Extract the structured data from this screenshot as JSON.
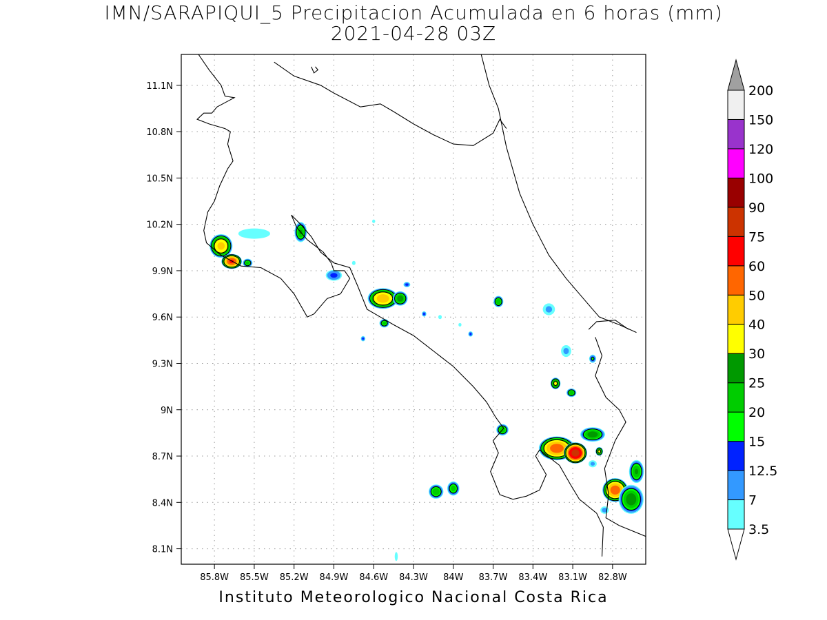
{
  "title": {
    "line1": "IMN/SARAPIQUI_5 Precipitacion Acumulada en 6 horas (mm)",
    "line2": "2021-04-28 03Z"
  },
  "footer": "Instituto Meteorologico Nacional Costa Rica",
  "map": {
    "lon_range": [
      -86.05,
      -82.55
    ],
    "lat_range": [
      8.0,
      11.3
    ],
    "x_ticks": [
      {
        "lon": -85.8,
        "label": "85.8W"
      },
      {
        "lon": -85.5,
        "label": "85.5W"
      },
      {
        "lon": -85.2,
        "label": "85.2W"
      },
      {
        "lon": -84.9,
        "label": "84.9W"
      },
      {
        "lon": -84.6,
        "label": "84.6W"
      },
      {
        "lon": -84.3,
        "label": "84.3W"
      },
      {
        "lon": -84.0,
        "label": "84W"
      },
      {
        "lon": -83.7,
        "label": "83.7W"
      },
      {
        "lon": -83.4,
        "label": "83.4W"
      },
      {
        "lon": -83.1,
        "label": "83.1W"
      },
      {
        "lon": -82.8,
        "label": "82.8W"
      }
    ],
    "y_ticks": [
      {
        "lat": 11.1,
        "label": "11.1N"
      },
      {
        "lat": 10.8,
        "label": "10.8N"
      },
      {
        "lat": 10.5,
        "label": "10.5N"
      },
      {
        "lat": 10.2,
        "label": "10.2N"
      },
      {
        "lat": 9.9,
        "label": "9.9N"
      },
      {
        "lat": 9.6,
        "label": "9.6N"
      },
      {
        "lat": 9.3,
        "label": "9.3N"
      },
      {
        "lat": 9.0,
        "label": "9N"
      },
      {
        "lat": 8.7,
        "label": "8.7N"
      },
      {
        "lat": 8.4,
        "label": "8.4N"
      },
      {
        "lat": 8.1,
        "label": "8.1N"
      }
    ],
    "grid": true,
    "coastlines": [
      [
        [
          -85.92,
          11.3
        ],
        [
          -85.84,
          11.2
        ],
        [
          -85.75,
          11.1
        ],
        [
          -85.72,
          11.03
        ],
        [
          -85.65,
          11.02
        ],
        [
          -85.78,
          10.96
        ],
        [
          -85.82,
          10.92
        ],
        [
          -85.88,
          10.92
        ],
        [
          -85.93,
          10.88
        ],
        [
          -85.84,
          10.85
        ],
        [
          -85.72,
          10.82
        ],
        [
          -85.68,
          10.8
        ],
        [
          -85.7,
          10.72
        ],
        [
          -85.66,
          10.61
        ],
        [
          -85.7,
          10.56
        ],
        [
          -85.76,
          10.45
        ],
        [
          -85.8,
          10.35
        ],
        [
          -85.85,
          10.28
        ],
        [
          -85.88,
          10.16
        ],
        [
          -85.86,
          10.08
        ],
        [
          -85.75,
          10.0
        ],
        [
          -85.6,
          9.93
        ],
        [
          -85.45,
          9.92
        ],
        [
          -85.3,
          9.85
        ],
        [
          -85.2,
          9.75
        ],
        [
          -85.1,
          9.6
        ],
        [
          -85.05,
          9.62
        ],
        [
          -84.95,
          9.72
        ],
        [
          -84.85,
          9.75
        ],
        [
          -84.78,
          9.85
        ],
        [
          -84.82,
          9.9
        ],
        [
          -84.9,
          9.9
        ],
        [
          -84.92,
          9.95
        ],
        [
          -84.98,
          10.02
        ],
        [
          -85.1,
          10.1
        ],
        [
          -85.18,
          10.18
        ],
        [
          -85.22,
          10.26
        ],
        [
          -85.15,
          10.2
        ],
        [
          -85.07,
          10.12
        ],
        [
          -85.0,
          10.02
        ],
        [
          -84.9,
          9.95
        ],
        [
          -84.78,
          9.92
        ],
        [
          -84.72,
          9.8
        ],
        [
          -84.65,
          9.65
        ],
        [
          -84.55,
          9.6
        ],
        [
          -84.45,
          9.55
        ],
        [
          -84.3,
          9.48
        ],
        [
          -84.15,
          9.38
        ],
        [
          -84.0,
          9.28
        ],
        [
          -83.85,
          9.15
        ],
        [
          -83.75,
          9.05
        ],
        [
          -83.68,
          8.95
        ],
        [
          -83.62,
          8.88
        ],
        [
          -83.7,
          8.8
        ],
        [
          -83.66,
          8.72
        ],
        [
          -83.72,
          8.6
        ],
        [
          -83.65,
          8.45
        ],
        [
          -83.55,
          8.42
        ],
        [
          -83.45,
          8.44
        ],
        [
          -83.35,
          8.48
        ],
        [
          -83.3,
          8.58
        ],
        [
          -83.38,
          8.7
        ],
        [
          -83.35,
          8.74
        ],
        [
          -83.2,
          8.64
        ],
        [
          -83.12,
          8.52
        ],
        [
          -83.05,
          8.42
        ],
        [
          -82.92,
          8.33
        ],
        [
          -82.87,
          8.24
        ],
        [
          -82.88,
          8.05
        ]
      ],
      [
        [
          -85.35,
          11.25
        ],
        [
          -85.2,
          11.16
        ],
        [
          -85.0,
          11.1
        ],
        [
          -84.9,
          11.05
        ],
        [
          -84.7,
          10.96
        ],
        [
          -84.55,
          10.98
        ],
        [
          -84.45,
          10.93
        ],
        [
          -84.3,
          10.85
        ],
        [
          -84.15,
          10.78
        ],
        [
          -84.0,
          10.72
        ],
        [
          -83.85,
          10.71
        ],
        [
          -83.7,
          10.79
        ],
        [
          -83.65,
          10.88
        ],
        [
          -83.6,
          10.82
        ]
      ],
      [
        [
          -83.79,
          11.3
        ],
        [
          -83.73,
          11.1
        ],
        [
          -83.66,
          10.95
        ],
        [
          -83.6,
          10.7
        ],
        [
          -83.5,
          10.4
        ],
        [
          -83.4,
          10.2
        ],
        [
          -83.28,
          10.0
        ],
        [
          -83.15,
          9.85
        ],
        [
          -83.0,
          9.7
        ],
        [
          -82.9,
          9.6
        ],
        [
          -82.75,
          9.55
        ],
        [
          -82.62,
          9.5
        ]
      ],
      [
        [
          -82.93,
          9.47
        ],
        [
          -82.88,
          9.35
        ],
        [
          -82.93,
          9.22
        ],
        [
          -82.85,
          9.08
        ],
        [
          -82.75,
          9.0
        ],
        [
          -82.7,
          8.92
        ],
        [
          -82.78,
          8.8
        ],
        [
          -82.86,
          8.62
        ],
        [
          -82.83,
          8.45
        ],
        [
          -82.85,
          8.3
        ],
        [
          -82.75,
          8.25
        ],
        [
          -82.55,
          8.18
        ]
      ],
      [
        [
          -82.98,
          9.52
        ],
        [
          -82.92,
          9.57
        ],
        [
          -82.78,
          9.58
        ],
        [
          -82.68,
          9.52
        ]
      ],
      [
        [
          -85.07,
          11.22
        ],
        [
          -85.05,
          11.18
        ],
        [
          -85.02,
          11.2
        ],
        [
          -85.04,
          11.22
        ]
      ]
    ]
  },
  "precip_cells": [
    {
      "lon": -85.75,
      "lat": 10.06,
      "peak": 42,
      "rx": 0.09,
      "ry": 0.08
    },
    {
      "lon": -85.67,
      "lat": 9.96,
      "peak": 60,
      "rx": 0.08,
      "ry": 0.05
    },
    {
      "lon": -85.55,
      "lat": 9.95,
      "peak": 22,
      "rx": 0.04,
      "ry": 0.03
    },
    {
      "lon": -85.5,
      "lat": 10.14,
      "peak": 6,
      "rx": 0.18,
      "ry": 0.05
    },
    {
      "lon": -85.15,
      "lat": 10.15,
      "peak": 25,
      "rx": 0.05,
      "ry": 0.07
    },
    {
      "lon": -84.9,
      "lat": 9.87,
      "peak": 14,
      "rx": 0.07,
      "ry": 0.04
    },
    {
      "lon": -84.53,
      "lat": 9.72,
      "peak": 45,
      "rx": 0.12,
      "ry": 0.07
    },
    {
      "lon": -84.4,
      "lat": 9.72,
      "peak": 28,
      "rx": 0.06,
      "ry": 0.05
    },
    {
      "lon": -84.52,
      "lat": 9.56,
      "peak": 22,
      "rx": 0.04,
      "ry": 0.03
    },
    {
      "lon": -83.66,
      "lat": 9.7,
      "peak": 24,
      "rx": 0.04,
      "ry": 0.04
    },
    {
      "lon": -83.63,
      "lat": 8.87,
      "peak": 24,
      "rx": 0.05,
      "ry": 0.04
    },
    {
      "lon": -84.13,
      "lat": 8.47,
      "peak": 24,
      "rx": 0.06,
      "ry": 0.05
    },
    {
      "lon": -84.0,
      "lat": 8.49,
      "peak": 22,
      "rx": 0.05,
      "ry": 0.05
    },
    {
      "lon": -83.23,
      "lat": 9.17,
      "peak": 32,
      "rx": 0.04,
      "ry": 0.04
    },
    {
      "lon": -83.11,
      "lat": 9.11,
      "peak": 24,
      "rx": 0.04,
      "ry": 0.03
    },
    {
      "lon": -82.95,
      "lat": 9.33,
      "peak": 16,
      "rx": 0.03,
      "ry": 0.03
    },
    {
      "lon": -83.22,
      "lat": 8.75,
      "peak": 55,
      "rx": 0.14,
      "ry": 0.08
    },
    {
      "lon": -83.08,
      "lat": 8.72,
      "peak": 80,
      "rx": 0.09,
      "ry": 0.07
    },
    {
      "lon": -82.95,
      "lat": 8.84,
      "peak": 28,
      "rx": 0.1,
      "ry": 0.05
    },
    {
      "lon": -82.9,
      "lat": 8.73,
      "peak": 32,
      "rx": 0.03,
      "ry": 0.03
    },
    {
      "lon": -82.78,
      "lat": 8.48,
      "peak": 55,
      "rx": 0.1,
      "ry": 0.08
    },
    {
      "lon": -82.66,
      "lat": 8.42,
      "peak": 28,
      "rx": 0.1,
      "ry": 0.1
    },
    {
      "lon": -82.62,
      "lat": 8.6,
      "peak": 25,
      "rx": 0.06,
      "ry": 0.08
    },
    {
      "lon": -83.28,
      "lat": 9.65,
      "peak": 8,
      "rx": 0.06,
      "ry": 0.05
    },
    {
      "lon": -83.15,
      "lat": 9.38,
      "peak": 8,
      "rx": 0.05,
      "ry": 0.05
    },
    {
      "lon": -84.22,
      "lat": 9.62,
      "peak": 14,
      "rx": 0.02,
      "ry": 0.02
    },
    {
      "lon": -84.1,
      "lat": 9.6,
      "peak": 6,
      "rx": 0.02,
      "ry": 0.02
    },
    {
      "lon": -84.35,
      "lat": 9.81,
      "peak": 14,
      "rx": 0.03,
      "ry": 0.02
    },
    {
      "lon": -84.75,
      "lat": 9.95,
      "peak": 6,
      "rx": 0.02,
      "ry": 0.02
    },
    {
      "lon": -84.68,
      "lat": 9.46,
      "peak": 13,
      "rx": 0.02,
      "ry": 0.02
    },
    {
      "lon": -84.6,
      "lat": 10.22,
      "peak": 5,
      "rx": 0.02,
      "ry": 0.02
    },
    {
      "lon": -83.87,
      "lat": 9.49,
      "peak": 14,
      "rx": 0.02,
      "ry": 0.02
    },
    {
      "lon": -83.95,
      "lat": 9.55,
      "peak": 5,
      "rx": 0.02,
      "ry": 0.02
    },
    {
      "lon": -84.43,
      "lat": 8.05,
      "peak": 5,
      "rx": 0.02,
      "ry": 0.05
    },
    {
      "lon": -82.95,
      "lat": 8.65,
      "peak": 8,
      "rx": 0.04,
      "ry": 0.03
    },
    {
      "lon": -82.86,
      "lat": 8.35,
      "peak": 9,
      "rx": 0.04,
      "ry": 0.03
    }
  ],
  "colorbar": {
    "levels": [
      "3.5",
      "7",
      "12.5",
      "15",
      "20",
      "25",
      "30",
      "40",
      "50",
      "60",
      "75",
      "90",
      "100",
      "120",
      "150",
      "200"
    ],
    "colors": [
      "#66ffff",
      "#3399ff",
      "#0022ff",
      "#00ff00",
      "#00cc00",
      "#009900",
      "#ffff00",
      "#ffcc00",
      "#ff6600",
      "#ff0000",
      "#cc3300",
      "#990000",
      "#ff00ff",
      "#9933cc",
      "#f0f0f0"
    ],
    "over_color": "#a0a0a0",
    "under_color": "#ffffff"
  }
}
